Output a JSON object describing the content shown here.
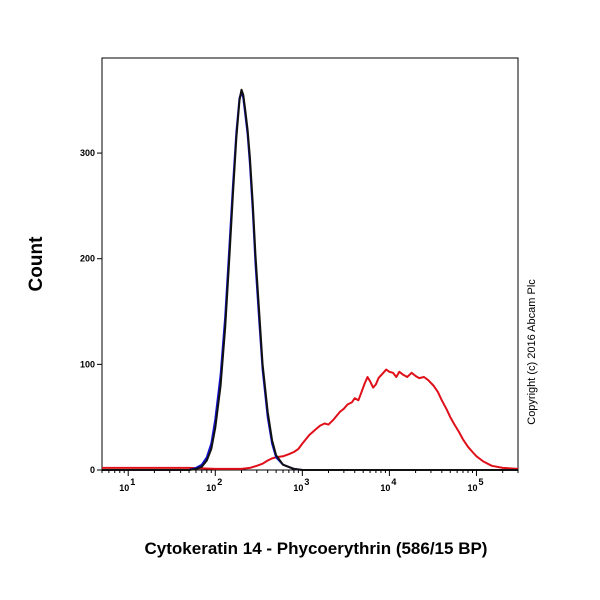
{
  "chart_data": {
    "type": "line",
    "xlabel": "Cytokeratin 14 - Phycoerythrin (586/15 BP)",
    "ylabel": "Count",
    "xscale": "log",
    "xlim": [
      5,
      300000
    ],
    "ylim": [
      0,
      390
    ],
    "grid": false,
    "legend": "none",
    "x_ticks": [
      {
        "value": 10,
        "base": "10",
        "exp": "1"
      },
      {
        "value": 100,
        "base": "10",
        "exp": "2"
      },
      {
        "value": 1000,
        "base": "10",
        "exp": "3"
      },
      {
        "value": 10000,
        "base": "10",
        "exp": "4"
      },
      {
        "value": 100000,
        "base": "10",
        "exp": "5"
      }
    ],
    "y_ticks": [
      "0",
      "100",
      "200",
      "300"
    ],
    "y_tick_values": [
      0,
      100,
      200,
      300
    ],
    "series": [
      {
        "color": "#e0101a",
        "points": [
          [
            5,
            2
          ],
          [
            50,
            2
          ],
          [
            100,
            1
          ],
          [
            150,
            1
          ],
          [
            200,
            1
          ],
          [
            250,
            2
          ],
          [
            300,
            4
          ],
          [
            350,
            6
          ],
          [
            400,
            9
          ],
          [
            450,
            11
          ],
          [
            500,
            12
          ],
          [
            600,
            13
          ],
          [
            700,
            15
          ],
          [
            800,
            17
          ],
          [
            900,
            20
          ],
          [
            1000,
            25
          ],
          [
            1200,
            33
          ],
          [
            1400,
            38
          ],
          [
            1600,
            42
          ],
          [
            1800,
            44
          ],
          [
            2000,
            43
          ],
          [
            2300,
            48
          ],
          [
            2700,
            55
          ],
          [
            3000,
            58
          ],
          [
            3300,
            62
          ],
          [
            3700,
            64
          ],
          [
            4000,
            68
          ],
          [
            4400,
            66
          ],
          [
            4800,
            74
          ],
          [
            5200,
            82
          ],
          [
            5600,
            88
          ],
          [
            6000,
            84
          ],
          [
            6500,
            78
          ],
          [
            7000,
            81
          ],
          [
            7500,
            87
          ],
          [
            8500,
            92
          ],
          [
            9200,
            95
          ],
          [
            10000,
            93
          ],
          [
            11000,
            92
          ],
          [
            12000,
            88
          ],
          [
            13000,
            93
          ],
          [
            14500,
            90
          ],
          [
            16000,
            88
          ],
          [
            18000,
            92
          ],
          [
            20000,
            89
          ],
          [
            22000,
            87
          ],
          [
            25000,
            88
          ],
          [
            28000,
            85
          ],
          [
            32000,
            80
          ],
          [
            36000,
            74
          ],
          [
            40000,
            66
          ],
          [
            45000,
            58
          ],
          [
            50000,
            50
          ],
          [
            56000,
            43
          ],
          [
            63000,
            36
          ],
          [
            70000,
            29
          ],
          [
            80000,
            22
          ],
          [
            90000,
            17
          ],
          [
            100000,
            13
          ],
          [
            120000,
            8
          ],
          [
            150000,
            4
          ],
          [
            200000,
            2
          ],
          [
            300000,
            1
          ]
        ]
      },
      {
        "color": "#1010d0",
        "points": [
          [
            5,
            0
          ],
          [
            50,
            0
          ],
          [
            60,
            2
          ],
          [
            70,
            5
          ],
          [
            80,
            12
          ],
          [
            90,
            25
          ],
          [
            100,
            48
          ],
          [
            115,
            90
          ],
          [
            130,
            145
          ],
          [
            145,
            210
          ],
          [
            160,
            270
          ],
          [
            175,
            320
          ],
          [
            190,
            352
          ],
          [
            200,
            358
          ],
          [
            210,
            352
          ],
          [
            220,
            338
          ],
          [
            235,
            318
          ],
          [
            250,
            290
          ],
          [
            270,
            245
          ],
          [
            290,
            195
          ],
          [
            320,
            140
          ],
          [
            350,
            95
          ],
          [
            400,
            50
          ],
          [
            450,
            25
          ],
          [
            500,
            12
          ],
          [
            600,
            5
          ],
          [
            800,
            1
          ],
          [
            1000,
            0
          ],
          [
            300000,
            0
          ]
        ]
      },
      {
        "color": "#111111",
        "points": [
          [
            5,
            0
          ],
          [
            50,
            0
          ],
          [
            60,
            1
          ],
          [
            70,
            3
          ],
          [
            80,
            9
          ],
          [
            90,
            20
          ],
          [
            100,
            40
          ],
          [
            115,
            80
          ],
          [
            130,
            135
          ],
          [
            145,
            200
          ],
          [
            160,
            262
          ],
          [
            175,
            315
          ],
          [
            190,
            350
          ],
          [
            200,
            360
          ],
          [
            210,
            355
          ],
          [
            220,
            342
          ],
          [
            235,
            322
          ],
          [
            250,
            296
          ],
          [
            270,
            252
          ],
          [
            290,
            203
          ],
          [
            320,
            148
          ],
          [
            350,
            100
          ],
          [
            400,
            55
          ],
          [
            450,
            28
          ],
          [
            500,
            14
          ],
          [
            600,
            5
          ],
          [
            800,
            1
          ],
          [
            1000,
            0
          ],
          [
            300000,
            0
          ]
        ]
      }
    ]
  },
  "copyright": "Copyright (c) 2016 Abcam Plc"
}
